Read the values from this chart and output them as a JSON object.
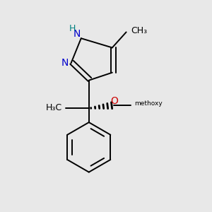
{
  "background_color": "#e8e8e8",
  "figsize": [
    3.0,
    3.0
  ],
  "dpi": 100,
  "bond_color": "#000000",
  "N_color": "#0000cc",
  "O_color": "#cc0000",
  "H_color": "#008080",
  "bond_width": 1.4,
  "font_size": 10,
  "font_size_small": 9,
  "xlim": [
    0.5,
    2.5
  ],
  "ylim": [
    0.2,
    2.9
  ]
}
